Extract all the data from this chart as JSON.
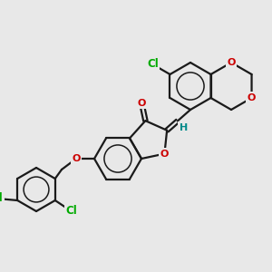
{
  "background_color": "#e8e8e8",
  "bond_color": "#1a1a1a",
  "atom_colors": {
    "Cl": "#00aa00",
    "O": "#cc0000",
    "H": "#008b8b",
    "C": "#1a1a1a"
  },
  "figsize": [
    3.0,
    3.0
  ],
  "dpi": 100
}
